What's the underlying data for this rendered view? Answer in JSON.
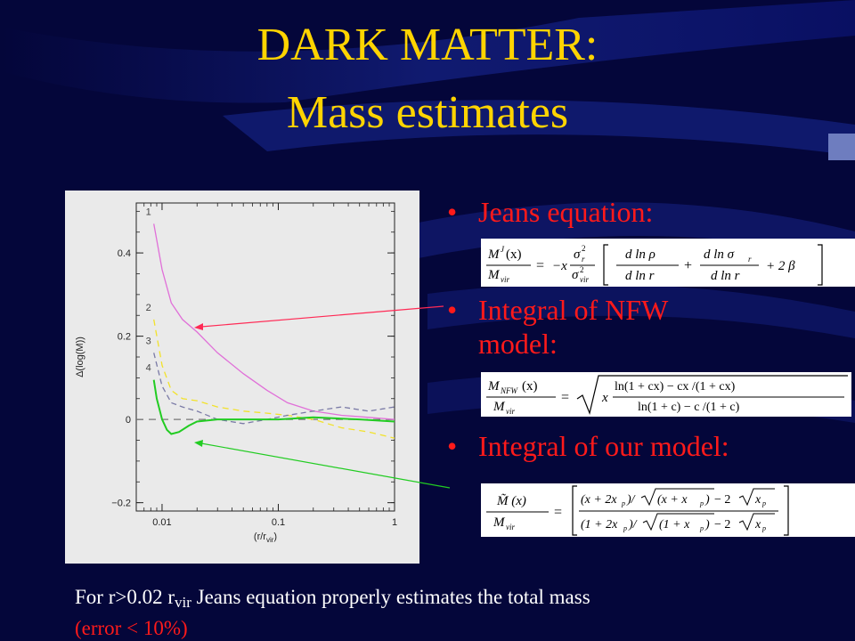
{
  "slide": {
    "title_line1": "DARK MATTER:",
    "title_line2": "Mass estimates",
    "bullets": [
      {
        "text": "Jeans equation:"
      },
      {
        "text_line1": "Integral of NFW",
        "text_line2": "model:"
      },
      {
        "text": "Integral of our model:"
      }
    ],
    "footer": {
      "part1": "For r>0.02 r",
      "sub": "vir",
      "part2": " Jeans equation properly estimates the total mass",
      "part3": "(error < 10%)"
    }
  },
  "equations": {
    "jeans": {
      "lhs_num": "M",
      "lhs_num_sup": "J",
      "lhs_arg": " (x)",
      "lhs_den": "M",
      "lhs_den_sub": "vir",
      "eq": "=",
      "minus_x": "−x",
      "sigma": "σ",
      "sub_r": "r",
      "sub_vir": "vir",
      "sup2": "2",
      "f1_num": "d ln ρ",
      "f1_den": "d ln r",
      "f2_num": "d ln σ",
      "f2_num_sub": "r",
      "f2_den": "d ln r",
      "plus": "+",
      "tail": "+ 2 β"
    },
    "nfw": {
      "lhs_num": "M",
      "lhs_num_sub": "NFW",
      "lhs_arg": " (x)",
      "lhs_den": "M",
      "lhs_den_sub": "vir",
      "eq": "=",
      "x": "x",
      "num": "ln(1 + cx) − cx /(1 + cx)",
      "den": "ln(1 + c) − c /(1 + c)"
    },
    "ours": {
      "lhs_num": "M̃ (x)",
      "lhs_den": "M",
      "lhs_den_sub": "vir",
      "eq": "=",
      "num_a": "(x + 2x",
      "num_b": ")/",
      "num_c": "(x + x",
      "num_d": ")",
      "num_e": " − 2",
      "num_f": "x",
      "den_a": "(1 + 2x",
      "den_b": ")/",
      "den_c": "(1 + x",
      "den_d": ")",
      "den_e": " − 2",
      "den_f": "x",
      "sub_p": "p"
    }
  },
  "chart_data": {
    "type": "line",
    "xlabel": "(r/r",
    "xlabel_sub": "vir",
    "xlabel_end": ")",
    "ylabel": "Δ(log(M))",
    "xscale": "log",
    "xlim": [
      0.006,
      1
    ],
    "ylim": [
      -0.22,
      0.52
    ],
    "xticks": [
      {
        "v": 0.01,
        "label": "0.01"
      },
      {
        "v": 0.1,
        "label": "0.1"
      },
      {
        "v": 1,
        "label": "1"
      }
    ],
    "yticks": [
      {
        "v": 0.4,
        "label": "0.4"
      },
      {
        "v": 0.2,
        "label": "0.2"
      },
      {
        "v": 0,
        "label": "0"
      },
      {
        "v": -0.2,
        "label": "−0.2"
      }
    ],
    "series": [
      {
        "label": "1",
        "color": "#e070d8",
        "dash": "",
        "x": [
          0.0085,
          0.01,
          0.012,
          0.015,
          0.02,
          0.03,
          0.05,
          0.08,
          0.12,
          0.2,
          0.35,
          0.6,
          1.0
        ],
        "y": [
          0.47,
          0.36,
          0.28,
          0.24,
          0.21,
          0.16,
          0.11,
          0.07,
          0.04,
          0.02,
          0.01,
          0.005,
          0.0
        ]
      },
      {
        "label": "2",
        "color": "#f2e22a",
        "dash": "7,5",
        "x": [
          0.0085,
          0.01,
          0.012,
          0.015,
          0.02,
          0.03,
          0.05,
          0.08,
          0.12,
          0.2,
          0.35,
          0.6,
          1.0
        ],
        "y": [
          0.24,
          0.13,
          0.07,
          0.05,
          0.045,
          0.03,
          0.02,
          0.015,
          0.01,
          0.0,
          -0.02,
          -0.03,
          -0.045
        ]
      },
      {
        "label": "3",
        "color": "#7a7aa6",
        "dash": "6,4",
        "x": [
          0.0085,
          0.01,
          0.012,
          0.015,
          0.02,
          0.03,
          0.05,
          0.08,
          0.12,
          0.2,
          0.35,
          0.6,
          1.0
        ],
        "y": [
          0.16,
          0.08,
          0.04,
          0.03,
          0.02,
          0.0,
          -0.01,
          0.0,
          0.01,
          0.02,
          0.03,
          0.02,
          0.03
        ]
      },
      {
        "label": "4",
        "color": "#22cc22",
        "dash": "",
        "x": [
          0.0085,
          0.009,
          0.01,
          0.011,
          0.012,
          0.014,
          0.017,
          0.02,
          0.03,
          0.05,
          0.1,
          0.2,
          0.5,
          1.0
        ],
        "y": [
          0.095,
          0.05,
          0.0,
          -0.025,
          -0.035,
          -0.03,
          -0.015,
          -0.005,
          0.0,
          0.0,
          0.0,
          0.005,
          0.0,
          -0.005
        ]
      }
    ],
    "baseline": {
      "y": 0,
      "dash": "8,6",
      "color": "#777777"
    },
    "grid": false
  },
  "colors": {
    "title": "#ffd400",
    "bullet": "#ff1a1a",
    "background": "#04063a"
  }
}
